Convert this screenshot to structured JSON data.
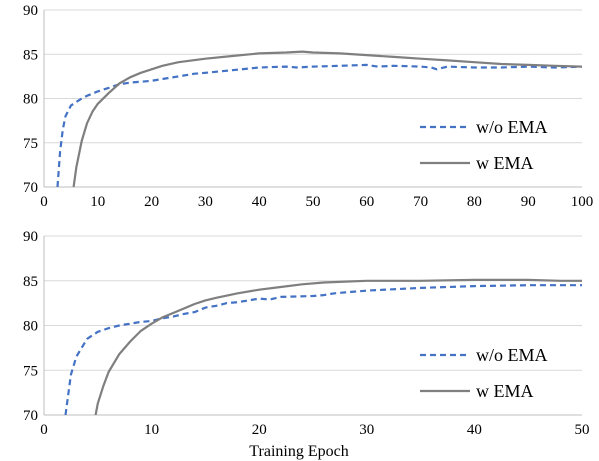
{
  "chart_data": [
    {
      "type": "line",
      "xlim": [
        0,
        100
      ],
      "ylim": [
        70,
        90
      ],
      "xticks": [
        0,
        10,
        20,
        30,
        40,
        50,
        60,
        70,
        80,
        90,
        100
      ],
      "yticks": [
        70,
        75,
        80,
        85,
        90
      ],
      "xlabel": "",
      "ylabel": "",
      "grid": "horizontal",
      "legend": "lower-right",
      "series": [
        {
          "name": "w/o EMA",
          "color": "#4472c4",
          "style": "dashed",
          "x": [
            2.5,
            3,
            3.5,
            4,
            5,
            6,
            7,
            8,
            10,
            12,
            14,
            16,
            18,
            20,
            22,
            25,
            28,
            30,
            35,
            40,
            45,
            47,
            50,
            55,
            60,
            62,
            65,
            70,
            72,
            73,
            75,
            80,
            85,
            90,
            95,
            100
          ],
          "values": [
            70,
            74,
            76.5,
            78,
            79.2,
            79.6,
            80,
            80.3,
            80.8,
            81.2,
            81.6,
            81.8,
            81.9,
            82.0,
            82.2,
            82.5,
            82.8,
            82.9,
            83.2,
            83.5,
            83.6,
            83.5,
            83.6,
            83.7,
            83.8,
            83.6,
            83.7,
            83.6,
            83.5,
            83.3,
            83.6,
            83.5,
            83.5,
            83.6,
            83.5,
            83.6
          ]
        },
        {
          "name": "w EMA",
          "color": "#7f7f7f",
          "style": "solid",
          "x": [
            5.5,
            6,
            7,
            8,
            9,
            10,
            12,
            14,
            16,
            18,
            20,
            22,
            25,
            30,
            35,
            40,
            45,
            48,
            50,
            55,
            60,
            65,
            70,
            75,
            80,
            85,
            90,
            95,
            100
          ],
          "values": [
            70,
            72.2,
            75.2,
            77.2,
            78.5,
            79.4,
            80.6,
            81.7,
            82.4,
            82.9,
            83.3,
            83.7,
            84.1,
            84.5,
            84.8,
            85.1,
            85.2,
            85.3,
            85.2,
            85.1,
            84.9,
            84.7,
            84.5,
            84.3,
            84.1,
            83.9,
            83.8,
            83.7,
            83.6
          ]
        }
      ]
    },
    {
      "type": "line",
      "xlim": [
        0,
        50
      ],
      "ylim": [
        70,
        90
      ],
      "xticks": [
        0,
        10,
        20,
        30,
        40,
        50
      ],
      "yticks": [
        70,
        75,
        80,
        85,
        90
      ],
      "xlabel": "Training Epoch",
      "ylabel": "",
      "grid": "horizontal",
      "legend": "lower-right",
      "series": [
        {
          "name": "w/o EMA",
          "color": "#4472c4",
          "style": "dashed",
          "x": [
            2,
            2.5,
            3,
            4,
            5,
            6,
            7,
            8,
            9,
            10,
            11,
            12,
            13,
            14,
            15,
            16,
            17,
            18,
            19,
            20,
            21,
            22,
            25,
            26,
            27,
            28,
            30,
            35,
            40,
            45,
            50
          ],
          "values": [
            70,
            74.5,
            76.5,
            78.5,
            79.3,
            79.7,
            80.0,
            80.2,
            80.4,
            80.5,
            80.8,
            81.0,
            81.3,
            81.5,
            82.0,
            82.2,
            82.5,
            82.6,
            82.8,
            83.0,
            82.9,
            83.2,
            83.3,
            83.4,
            83.6,
            83.7,
            83.9,
            84.2,
            84.4,
            84.5,
            84.5
          ]
        },
        {
          "name": "w EMA",
          "color": "#7f7f7f",
          "style": "solid",
          "x": [
            4.8,
            5,
            5.5,
            6,
            7,
            8,
            9,
            10,
            11,
            12,
            13,
            14,
            15,
            16,
            18,
            20,
            22,
            24,
            26,
            28,
            30,
            35,
            40,
            45,
            48,
            50
          ],
          "values": [
            70,
            71.3,
            73.2,
            74.8,
            76.8,
            78.2,
            79.4,
            80.2,
            80.9,
            81.4,
            81.9,
            82.4,
            82.8,
            83.1,
            83.6,
            84.0,
            84.3,
            84.6,
            84.8,
            84.9,
            85.0,
            85.0,
            85.1,
            85.1,
            85.0,
            85.0
          ]
        }
      ]
    }
  ]
}
